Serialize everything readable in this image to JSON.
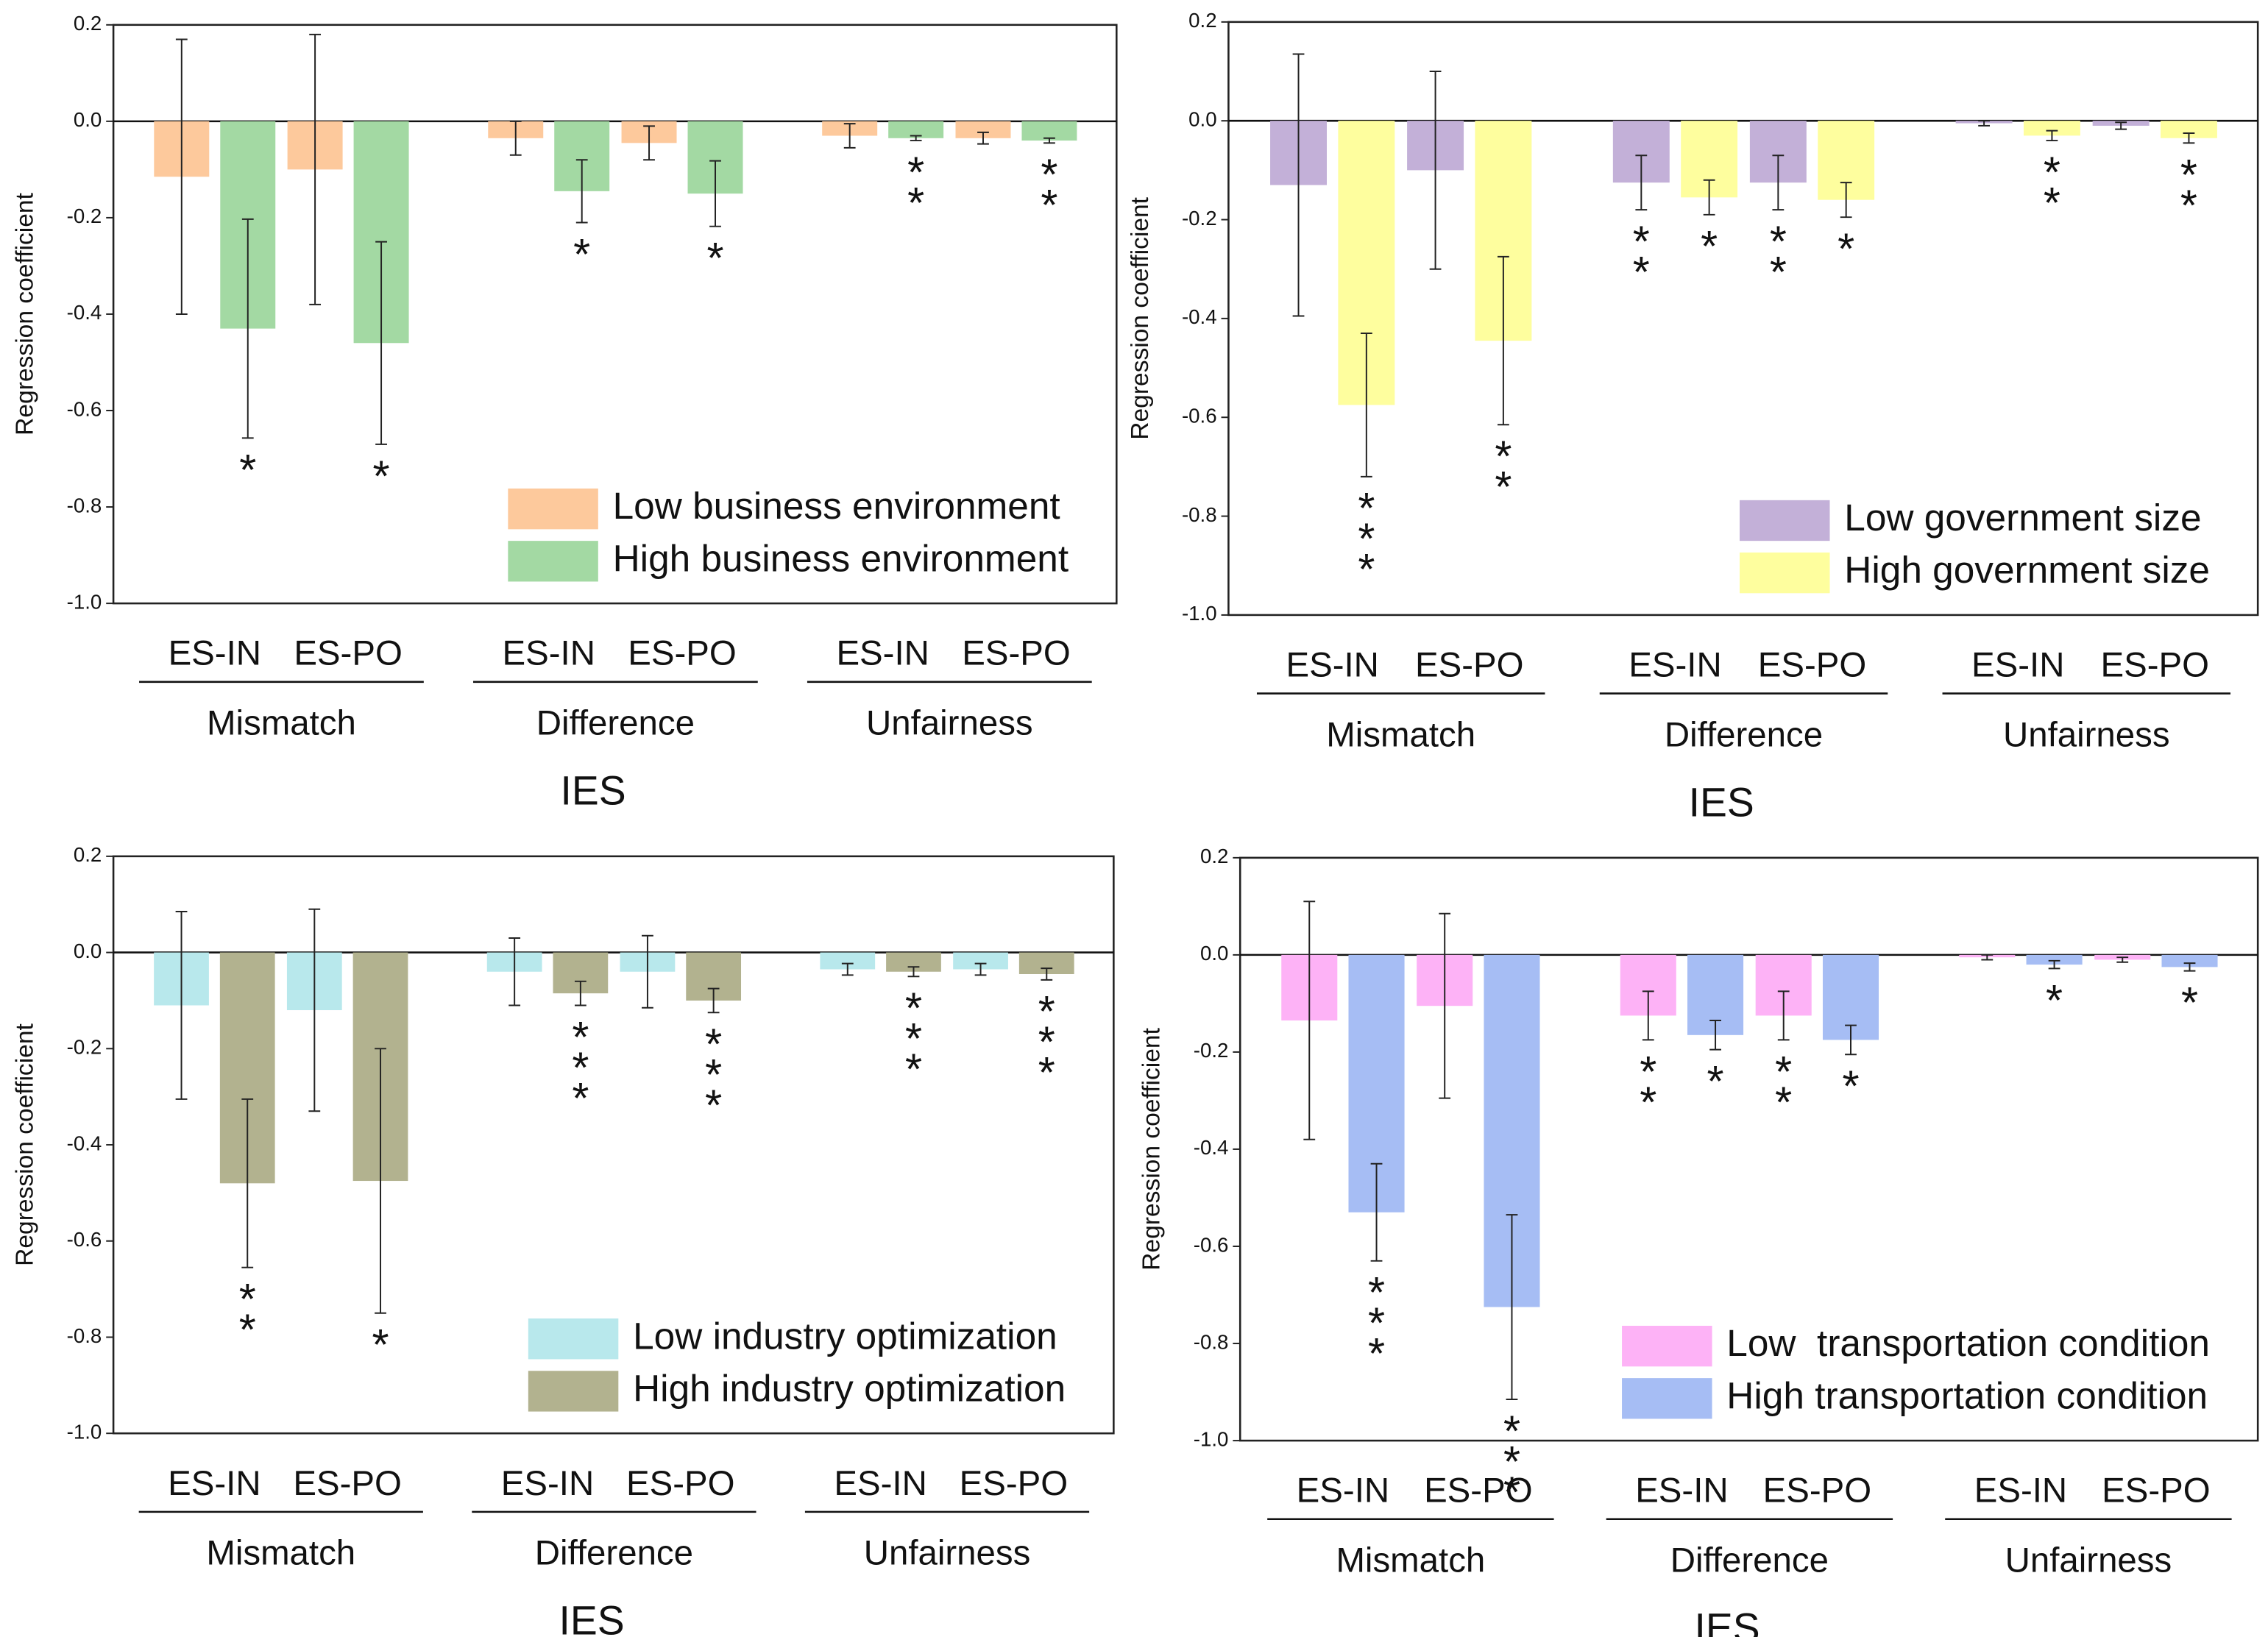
{
  "chart_data": [
    {
      "type": "bar",
      "ylabel": "Regression coefficient",
      "xlabel": "IES",
      "groups": [
        "Mismatch",
        "Difference",
        "Unfairness"
      ],
      "categories": [
        "ES-IN",
        "ES-PO",
        "ES-IN",
        "ES-PO",
        "ES-IN",
        "ES-PO"
      ],
      "ylim": [
        -1.0,
        0.2
      ],
      "yticks": [
        {
          "value": -1.0,
          "label": "-1.0"
        },
        -0.8,
        -0.6,
        -0.4,
        -0.2,
        {
          "value": 0,
          "label": "0.0"
        },
        0.2
      ],
      "legend": "lower right",
      "series": [
        {
          "name": "Low business environment",
          "color": "#fdc99c",
          "values": [
            -0.115,
            -0.1,
            -0.035,
            -0.045,
            -0.03,
            -0.035
          ],
          "errors": [
            0.285,
            0.28,
            0.035,
            0.035,
            0.025,
            0.012
          ],
          "value_labels": [
            null,
            null,
            null,
            null,
            null,
            null
          ]
        },
        {
          "name": "High business environment",
          "color": "#a3d9a3",
          "values": [
            -0.43,
            -0.46,
            -0.145,
            -0.15,
            -0.035,
            -0.04
          ],
          "errors": [
            0.227,
            0.21,
            0.065,
            0.068,
            0.005,
            0.005
          ],
          "value_labels": [
            "*",
            "*",
            "*",
            "*",
            "**",
            "**"
          ]
        }
      ]
    },
    {
      "type": "bar",
      "ylabel": "Regression coefficient",
      "xlabel": "IES",
      "groups": [
        "Mismatch",
        "Difference",
        "Unfairness"
      ],
      "categories": [
        "ES-IN",
        "ES-PO",
        "ES-IN",
        "ES-PO",
        "ES-IN",
        "ES-PO"
      ],
      "ylim": [
        -1.0,
        0.2
      ],
      "yticks": [
        {
          "value": -1.0,
          "label": "-1.0"
        },
        -0.8,
        -0.6,
        -0.4,
        -0.2,
        {
          "value": 0,
          "label": "0.0"
        },
        0.2
      ],
      "legend": "lower right",
      "series": [
        {
          "name": "Low government size",
          "color": "#c3b0d8",
          "values": [
            -0.13,
            -0.1,
            -0.125,
            -0.125,
            -0.005,
            -0.01
          ],
          "errors": [
            0.265,
            0.2,
            0.055,
            0.055,
            0.005,
            0.007
          ],
          "value_labels": [
            null,
            null,
            "**",
            "**",
            null,
            null
          ]
        },
        {
          "name": "High government size",
          "color": "#fefe9e",
          "values": [
            -0.575,
            -0.445,
            -0.155,
            -0.16,
            -0.03,
            -0.035
          ],
          "errors": [
            0.145,
            0.17,
            0.035,
            0.035,
            0.01,
            0.01
          ],
          "value_labels": [
            "***",
            "**",
            "*",
            "*",
            "**",
            "**"
          ]
        }
      ]
    },
    {
      "type": "bar",
      "ylabel": "Regression coefficient",
      "xlabel": "IES",
      "groups": [
        "Mismatch",
        "Difference",
        "Unfairness"
      ],
      "categories": [
        "ES-IN",
        "ES-PO",
        "ES-IN",
        "ES-PO",
        "ES-IN",
        "ES-PO"
      ],
      "ylim": [
        -1.0,
        0.2
      ],
      "yticks": [
        {
          "value": -1.0,
          "label": "-1.0"
        },
        -0.8,
        -0.6,
        -0.4,
        -0.2,
        {
          "value": 0,
          "label": "0.0"
        },
        0.2
      ],
      "legend": "lower right",
      "series": [
        {
          "name": "Low industry optimization",
          "color": "#b8e8ec",
          "values": [
            -0.11,
            -0.12,
            -0.04,
            -0.04,
            -0.035,
            -0.035
          ],
          "errors": [
            0.195,
            0.21,
            0.07,
            0.075,
            0.012,
            0.012
          ],
          "value_labels": [
            null,
            null,
            null,
            null,
            null,
            null
          ]
        },
        {
          "name": "High industry optimization",
          "color": "#b2b28f",
          "values": [
            -0.48,
            -0.475,
            -0.085,
            -0.1,
            -0.04,
            -0.045
          ],
          "errors": [
            0.175,
            0.275,
            0.025,
            0.025,
            0.01,
            0.012
          ],
          "value_labels": [
            "**",
            "*",
            "***",
            "***",
            "***",
            "***"
          ]
        }
      ]
    },
    {
      "type": "bar",
      "ylabel": "Regression coefficient",
      "xlabel": "IES",
      "groups": [
        "Mismatch",
        "Difference",
        "Unfairness"
      ],
      "categories": [
        "ES-IN",
        "ES-PO",
        "ES-IN",
        "ES-PO",
        "ES-IN",
        "ES-PO"
      ],
      "ylim": [
        -1.0,
        0.2
      ],
      "yticks": [
        {
          "value": -1.0,
          "label": "-1.0"
        },
        -0.8,
        -0.6,
        -0.4,
        -0.2,
        {
          "value": 0,
          "label": "0.0"
        },
        0.2
      ],
      "legend": "lower right",
      "series": [
        {
          "name": "Low  transportation condition",
          "color": "#fdb2f6",
          "values": [
            -0.135,
            -0.105,
            -0.125,
            -0.125,
            -0.005,
            -0.01
          ],
          "errors": [
            0.245,
            0.19,
            0.05,
            0.05,
            0.005,
            0.005
          ],
          "value_labels": [
            null,
            null,
            "**",
            "**",
            null,
            null
          ]
        },
        {
          "name": "High transportation condition",
          "color": "#a6bdf4",
          "values": [
            -0.53,
            -0.725,
            -0.165,
            -0.175,
            -0.02,
            -0.025
          ],
          "errors": [
            0.1,
            0.19,
            0.03,
            0.03,
            0.008,
            0.008
          ],
          "value_labels": [
            "***",
            "***",
            "*",
            "*",
            "*",
            "*"
          ]
        }
      ]
    }
  ]
}
